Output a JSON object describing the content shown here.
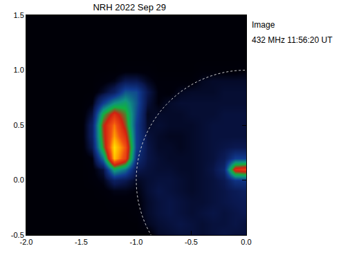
{
  "chart_data": {
    "type": "heatmap",
    "title": "NRH 2022 Sep 29",
    "annotations": [
      "Image",
      "432 MHz 11:56:20 UT"
    ],
    "x": [
      -2.0,
      -1.9,
      -1.8,
      -1.7,
      -1.6,
      -1.5,
      -1.4,
      -1.3,
      -1.2,
      -1.1,
      -1.0,
      -0.9,
      -0.8,
      -0.7,
      -0.6,
      -0.5,
      -0.4,
      -0.3,
      -0.2,
      -0.1,
      0.0
    ],
    "y": [
      -0.5,
      -0.4,
      -0.3,
      -0.2,
      -0.1,
      0.0,
      0.1,
      0.2,
      0.3,
      0.4,
      0.5,
      0.6,
      0.7,
      0.8,
      0.9,
      1.0,
      1.1,
      1.2,
      1.3,
      1.4,
      1.5
    ],
    "z": [
      [
        3,
        3,
        3,
        3,
        3,
        3,
        3,
        3,
        3,
        3,
        3,
        3,
        8,
        9,
        10,
        10,
        9,
        10,
        11,
        10,
        10
      ],
      [
        3,
        3,
        3,
        3,
        3,
        3,
        3,
        3,
        3,
        3,
        3,
        7,
        9,
        10,
        11,
        10,
        9,
        10,
        10,
        11,
        10
      ],
      [
        3,
        3,
        3,
        3,
        3,
        3,
        3,
        3,
        3,
        3,
        4,
        8,
        10,
        11,
        10,
        9,
        10,
        11,
        10,
        11,
        12
      ],
      [
        3,
        3,
        3,
        3,
        3,
        3,
        3,
        3,
        4,
        4,
        4,
        8,
        10,
        11,
        10,
        9,
        9,
        10,
        11,
        12,
        13
      ],
      [
        3,
        3,
        3,
        3,
        3,
        3,
        3,
        4,
        6,
        6,
        5,
        9,
        11,
        10,
        9,
        8,
        9,
        10,
        11,
        13,
        15
      ],
      [
        3,
        3,
        3,
        3,
        3,
        3,
        4,
        6,
        15,
        12,
        7,
        9,
        10,
        10,
        9,
        8,
        9,
        10,
        12,
        22,
        22
      ],
      [
        3,
        3,
        3,
        3,
        3,
        3,
        4,
        10,
        45,
        35,
        12,
        10,
        9,
        9,
        8,
        8,
        9,
        11,
        18,
        70,
        75
      ],
      [
        3,
        3,
        3,
        3,
        3,
        3,
        5,
        35,
        95,
        75,
        20,
        11,
        9,
        8,
        8,
        8,
        9,
        10,
        13,
        25,
        25
      ],
      [
        3,
        3,
        3,
        3,
        3,
        3,
        12,
        55,
        100,
        80,
        25,
        11,
        8,
        8,
        7,
        8,
        9,
        10,
        11,
        12,
        12
      ],
      [
        3,
        3,
        3,
        3,
        3,
        3,
        15,
        60,
        90,
        70,
        25,
        10,
        8,
        7,
        7,
        8,
        9,
        10,
        10,
        10,
        10
      ],
      [
        3,
        3,
        3,
        3,
        3,
        3,
        15,
        62,
        85,
        60,
        25,
        8,
        9,
        8,
        8,
        8,
        9,
        10,
        10,
        10,
        10
      ],
      [
        3,
        3,
        3,
        3,
        3,
        3,
        10,
        50,
        70,
        55,
        28,
        7,
        8,
        8,
        8,
        9,
        9,
        9,
        10,
        10,
        10
      ],
      [
        3,
        3,
        3,
        3,
        3,
        3,
        5,
        25,
        40,
        45,
        30,
        10,
        5,
        8,
        9,
        9,
        9,
        9,
        9,
        9,
        9
      ],
      [
        3,
        3,
        3,
        3,
        3,
        3,
        3,
        8,
        15,
        30,
        28,
        12,
        5,
        4,
        7,
        8,
        8,
        8,
        9,
        9,
        9
      ],
      [
        3,
        3,
        3,
        3,
        3,
        3,
        3,
        4,
        6,
        12,
        12,
        7,
        4,
        4,
        4,
        4,
        7,
        8,
        8,
        8,
        8
      ],
      [
        3,
        3,
        3,
        3,
        3,
        3,
        3,
        3,
        3,
        4,
        4,
        4,
        3,
        3,
        3,
        3,
        4,
        4,
        4,
        4,
        5
      ],
      [
        3,
        3,
        3,
        3,
        3,
        3,
        3,
        3,
        3,
        3,
        3,
        3,
        3,
        3,
        3,
        3,
        3,
        3,
        3,
        3,
        3
      ],
      [
        3,
        3,
        3,
        3,
        3,
        3,
        3,
        3,
        3,
        3,
        3,
        3,
        3,
        3,
        3,
        3,
        3,
        3,
        3,
        3,
        3
      ],
      [
        3,
        3,
        3,
        3,
        3,
        3,
        3,
        3,
        3,
        3,
        3,
        3,
        3,
        3,
        3,
        3,
        3,
        3,
        3,
        3,
        3
      ],
      [
        3,
        3,
        3,
        3,
        3,
        3,
        3,
        3,
        3,
        3,
        3,
        3,
        3,
        3,
        3,
        3,
        3,
        3,
        3,
        3,
        3
      ],
      [
        3,
        3,
        3,
        3,
        3,
        3,
        3,
        3,
        3,
        3,
        3,
        3,
        3,
        3,
        3,
        3,
        3,
        3,
        3,
        3,
        3
      ]
    ],
    "zlim": [
      0,
      100
    ],
    "limb": {
      "x": 0,
      "y": 0,
      "r": 1
    },
    "xlim": [
      -2.0,
      0.0
    ],
    "ylim": [
      -0.5,
      1.5
    ],
    "xticks": [
      {
        "value": -2,
        "label": "-2.0"
      },
      -1.5,
      {
        "value": -1,
        "label": "-1.0"
      },
      -0.5,
      {
        "value": 0,
        "label": "0.0"
      }
    ],
    "yticks": [
      -0.5,
      {
        "value": 0,
        "label": "0.0"
      },
      0.5,
      {
        "value": 1,
        "label": "1.0"
      },
      1.5
    ],
    "grid": false
  }
}
